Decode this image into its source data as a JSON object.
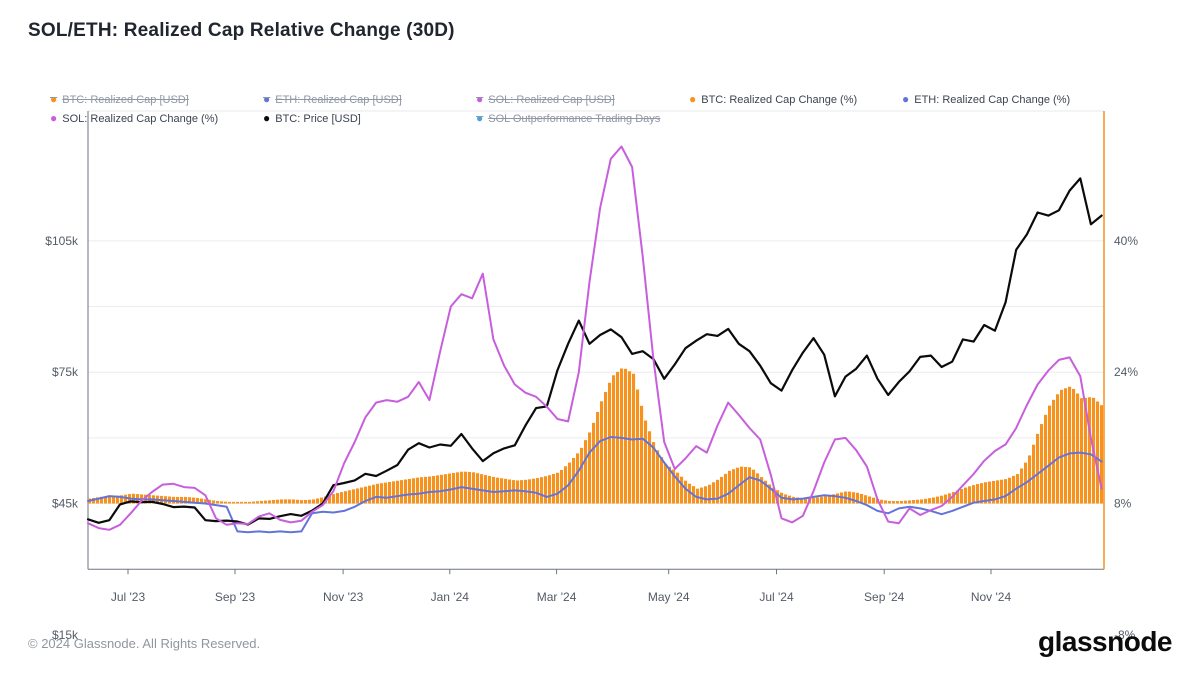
{
  "title": "SOL/ETH: Realized Cap Relative Change (30D)",
  "legend": {
    "items": [
      {
        "label": "BTC: Realized Cap [USD]",
        "color": "#f6921e",
        "active": false,
        "row": 1
      },
      {
        "label": "ETH: Realized Cap [USD]",
        "color": "#6374d8",
        "active": false,
        "row": 1
      },
      {
        "label": "SOL: Realized Cap [USD]",
        "color": "#c75fdc",
        "active": false,
        "row": 1
      },
      {
        "label": "BTC: Realized Cap Change (%)",
        "color": "#f6921e",
        "active": true,
        "row": 1
      },
      {
        "label": "ETH: Realized Cap Change (%)",
        "color": "#6374d8",
        "active": true,
        "row": 1
      },
      {
        "label": "SOL: Realized Cap Change (%)",
        "color": "#c75fdc",
        "active": true,
        "row": 2
      },
      {
        "label": "BTC: Price [USD]",
        "color": "#0b0b0b",
        "active": true,
        "row": 2
      },
      {
        "label": "SOL Outperformance Trading Days",
        "color": "#4aa3df",
        "active": false,
        "row": 2
      }
    ]
  },
  "chart_data": {
    "type": "mixed-bar-line",
    "x_tick_labels": [
      "Jul '23",
      "Sep '23",
      "Nov '23",
      "Jan '24",
      "Mar '24",
      "May '24",
      "Jul '24",
      "Sep '24",
      "Nov '24"
    ],
    "left_axis": {
      "tick_labels": [
        "$105k",
        "$75k",
        "$45k",
        "$15k"
      ],
      "tick_values_usd": [
        105000,
        75000,
        45000,
        15000
      ]
    },
    "right_axis": {
      "tick_labels": [
        "40%",
        "24%",
        "8%",
        "-8%"
      ],
      "tick_values_pct": [
        40,
        24,
        8,
        -8
      ]
    },
    "grid": true,
    "last_point_marker_color": "#f6921e",
    "series": [
      {
        "name": "BTC: Realized Cap Change (%)",
        "type": "bar",
        "axis": "right",
        "unit": "%",
        "color": "#f6921e",
        "values": [
          0.6,
          0.8,
          0.9,
          1.0,
          1.2,
          1.1,
          1.0,
          0.9,
          0.8,
          0.8,
          0.7,
          0.5,
          0.3,
          0.2,
          0.2,
          0.2,
          0.3,
          0.4,
          0.5,
          0.5,
          0.4,
          0.5,
          0.8,
          1.2,
          1.5,
          1.8,
          2.1,
          2.4,
          2.6,
          2.8,
          3.0,
          3.2,
          3.3,
          3.5,
          3.7,
          3.9,
          3.8,
          3.5,
          3.2,
          3.0,
          2.8,
          2.9,
          3.1,
          3.4,
          3.8,
          5.0,
          6.5,
          9.0,
          12.5,
          15.5,
          16.6,
          15.8,
          10.5,
          7.0,
          4.8,
          3.9,
          2.6,
          1.8,
          2.2,
          3.0,
          4.0,
          4.5,
          4.4,
          3.2,
          2.0,
          1.2,
          0.8,
          0.6,
          0.7,
          0.9,
          1.2,
          1.5,
          1.3,
          0.9,
          0.5,
          0.3,
          0.3,
          0.4,
          0.5,
          0.7,
          1.0,
          1.4,
          1.9,
          2.3,
          2.6,
          2.8,
          3.0,
          3.6,
          5.5,
          9.0,
          12.0,
          13.8,
          14.3,
          12.8,
          13.0,
          11.8
        ]
      },
      {
        "name": "ETH: Realized Cap Change (%)",
        "type": "line",
        "axis": "right",
        "unit": "%",
        "color": "#6374d8",
        "values": [
          0.3,
          0.6,
          0.9,
          0.8,
          0.6,
          0.5,
          0.5,
          0.4,
          0.3,
          0.2,
          0.1,
          0.0,
          -0.2,
          -0.4,
          -3.4,
          -3.5,
          -3.4,
          -3.5,
          -3.4,
          -3.5,
          -3.4,
          -1.2,
          -1.0,
          -1.1,
          -0.9,
          -0.4,
          0.3,
          0.8,
          0.7,
          0.9,
          1.1,
          1.2,
          1.4,
          1.5,
          1.7,
          2.0,
          1.8,
          1.6,
          1.4,
          1.5,
          1.6,
          1.5,
          1.3,
          0.8,
          1.2,
          2.2,
          4.0,
          6.2,
          7.6,
          8.1,
          8.0,
          7.8,
          7.9,
          6.8,
          5.0,
          3.3,
          1.8,
          0.8,
          0.5,
          0.6,
          1.2,
          2.2,
          3.2,
          2.8,
          1.8,
          0.7,
          0.5,
          0.6,
          0.8,
          1.0,
          0.9,
          0.7,
          0.3,
          -0.2,
          -0.9,
          -1.2,
          -0.6,
          -0.4,
          -0.6,
          -0.9,
          -1.3,
          -0.9,
          -0.4,
          0.1,
          0.3,
          0.5,
          0.9,
          1.8,
          2.6,
          3.6,
          4.6,
          5.6,
          6.1,
          6.2,
          6.0,
          5.1
        ]
      },
      {
        "name": "SOL: Realized Cap Change (%)",
        "type": "line",
        "axis": "right",
        "unit": "%",
        "color": "#c75fdc",
        "values": [
          -2.4,
          -3.0,
          -3.2,
          -2.6,
          -1.2,
          0.3,
          1.4,
          2.3,
          2.4,
          2.0,
          1.9,
          1.0,
          -1.8,
          -2.6,
          -2.4,
          -2.5,
          -1.6,
          -1.2,
          -2.0,
          -2.3,
          -2.1,
          -1.0,
          -0.2,
          1.5,
          4.9,
          7.5,
          10.5,
          12.3,
          12.6,
          12.4,
          13.0,
          14.8,
          12.6,
          18.5,
          24.0,
          25.5,
          25.0,
          28.0,
          20.0,
          16.8,
          14.5,
          13.5,
          13.0,
          11.8,
          10.3,
          10.0,
          16.0,
          27.0,
          36.0,
          42.0,
          43.5,
          41.0,
          30.0,
          17.5,
          7.5,
          4.2,
          5.5,
          7.0,
          6.2,
          9.5,
          12.3,
          10.8,
          9.2,
          7.8,
          3.5,
          -1.8,
          -2.3,
          -1.5,
          1.5,
          5.0,
          7.8,
          8.0,
          6.5,
          4.5,
          0.5,
          -2.2,
          -2.4,
          -0.6,
          -1.4,
          -0.8,
          -0.3,
          0.8,
          2.2,
          3.6,
          5.2,
          6.4,
          7.2,
          9.2,
          12.0,
          14.5,
          16.2,
          17.5,
          17.8,
          15.5,
          8.0,
          1.8
        ]
      },
      {
        "name": "BTC: Price [USD]",
        "type": "line",
        "axis": "left",
        "unit": "kUSD",
        "color": "#0b0b0b",
        "values": [
          26.4,
          25.6,
          26.2,
          29.8,
          30.5,
          30.3,
          30.4,
          29.9,
          29.2,
          29.3,
          29.1,
          26.2,
          26.0,
          26.1,
          25.9,
          25.2,
          26.6,
          26.5,
          27.1,
          27.6,
          27.2,
          28.4,
          30.0,
          34.2,
          34.7,
          35.3,
          36.8,
          36.3,
          37.5,
          38.8,
          42.3,
          43.8,
          42.8,
          43.5,
          43.2,
          45.9,
          42.6,
          39.7,
          41.5,
          42.6,
          43.3,
          47.8,
          51.8,
          52.2,
          60.5,
          66.5,
          71.8,
          66.5,
          68.5,
          69.8,
          68.0,
          64.2,
          64.8,
          63.0,
          58.5,
          61.8,
          65.5,
          67.2,
          68.7,
          68.3,
          69.9,
          66.5,
          64.8,
          61.5,
          57.5,
          55.8,
          60.5,
          64.5,
          67.8,
          64.0,
          54.5,
          59.0,
          60.8,
          63.8,
          58.5,
          54.8,
          57.8,
          60.2,
          63.5,
          63.8,
          61.2,
          62.4,
          67.5,
          67.0,
          70.8,
          69.5,
          76.0,
          88.0,
          91.5,
          96.5,
          95.8,
          97.0,
          101.5,
          104.3,
          93.8,
          95.8
        ]
      }
    ]
  },
  "footer": {
    "copyright": "© 2024 Glassnode. All Rights Reserved.",
    "brand": "glassnode"
  }
}
